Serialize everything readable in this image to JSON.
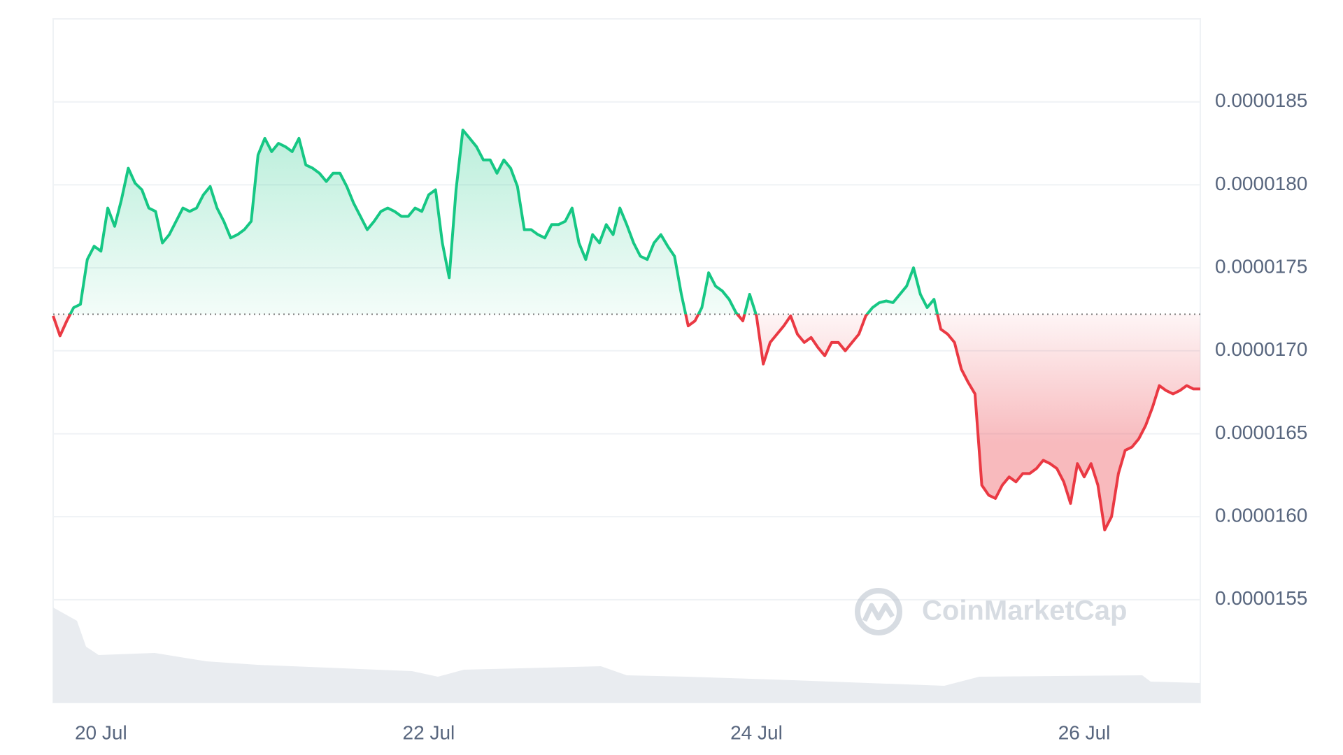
{
  "chart_data": {
    "type": "line",
    "watermark": "CoinMarketCap",
    "up_color": "#16c784",
    "down_color": "#ea3943",
    "baseline": 1.722e-05,
    "values": [
      1.721e-05,
      1.709e-05,
      1.718e-05,
      1.726e-05,
      1.728e-05,
      1.755e-05,
      1.763e-05,
      1.76e-05,
      1.786e-05,
      1.775e-05,
      1.791e-05,
      1.81e-05,
      1.801e-05,
      1.797e-05,
      1.786e-05,
      1.784e-05,
      1.765e-05,
      1.77e-05,
      1.778e-05,
      1.786e-05,
      1.784e-05,
      1.786e-05,
      1.794e-05,
      1.799e-05,
      1.786e-05,
      1.778e-05,
      1.768e-05,
      1.77e-05,
      1.773e-05,
      1.778e-05,
      1.818e-05,
      1.828e-05,
      1.82e-05,
      1.825e-05,
      1.823e-05,
      1.82e-05,
      1.828e-05,
      1.812e-05,
      1.81e-05,
      1.807e-05,
      1.802e-05,
      1.807e-05,
      1.807e-05,
      1.799e-05,
      1.789e-05,
      1.781e-05,
      1.773e-05,
      1.778e-05,
      1.784e-05,
      1.786e-05,
      1.784e-05,
      1.781e-05,
      1.781e-05,
      1.786e-05,
      1.784e-05,
      1.794e-05,
      1.797e-05,
      1.765e-05,
      1.744e-05,
      1.797e-05,
      1.833e-05,
      1.828e-05,
      1.823e-05,
      1.815e-05,
      1.815e-05,
      1.807e-05,
      1.815e-05,
      1.81e-05,
      1.799e-05,
      1.773e-05,
      1.773e-05,
      1.77e-05,
      1.768e-05,
      1.776e-05,
      1.776e-05,
      1.778e-05,
      1.786e-05,
      1.765e-05,
      1.755e-05,
      1.77e-05,
      1.765e-05,
      1.776e-05,
      1.77e-05,
      1.786e-05,
      1.776e-05,
      1.765e-05,
      1.757e-05,
      1.755e-05,
      1.765e-05,
      1.77e-05,
      1.763e-05,
      1.757e-05,
      1.734e-05,
      1.715e-05,
      1.718e-05,
      1.726e-05,
      1.747e-05,
      1.739e-05,
      1.736e-05,
      1.731e-05,
      1.723e-05,
      1.718e-05,
      1.734e-05,
      1.721e-05,
      1.692e-05,
      1.705e-05,
      1.71e-05,
      1.715e-05,
      1.721e-05,
      1.71e-05,
      1.705e-05,
      1.708e-05,
      1.702e-05,
      1.697e-05,
      1.705e-05,
      1.705e-05,
      1.7e-05,
      1.705e-05,
      1.71e-05,
      1.721e-05,
      1.726e-05,
      1.729e-05,
      1.73e-05,
      1.729e-05,
      1.734e-05,
      1.739e-05,
      1.75e-05,
      1.734e-05,
      1.726e-05,
      1.731e-05,
      1.713e-05,
      1.71e-05,
      1.705e-05,
      1.689e-05,
      1.681e-05,
      1.674e-05,
      1.619e-05,
      1.613e-05,
      1.611e-05,
      1.619e-05,
      1.624e-05,
      1.621e-05,
      1.626e-05,
      1.626e-05,
      1.629e-05,
      1.634e-05,
      1.632e-05,
      1.629e-05,
      1.621e-05,
      1.608e-05,
      1.632e-05,
      1.624e-05,
      1.632e-05,
      1.619e-05,
      1.592e-05,
      1.6e-05,
      1.626e-05,
      1.64e-05,
      1.642e-05,
      1.647e-05,
      1.655e-05,
      1.666e-05,
      1.679e-05,
      1.676e-05,
      1.674e-05,
      1.676e-05,
      1.679e-05,
      1.677e-05,
      1.677e-05
    ],
    "xlim": [
      0,
      168
    ],
    "xticks": [
      {
        "value": 7,
        "label": "20 Jul"
      },
      {
        "value": 55,
        "label": "22 Jul"
      },
      {
        "value": 103,
        "label": "24 Jul"
      },
      {
        "value": 151,
        "label": "26 Jul"
      }
    ],
    "ylim": [
      1.488e-05,
      1.9e-05
    ],
    "yticks": [
      {
        "value": 1.55e-05,
        "label": "0.0000155"
      },
      {
        "value": 1.6e-05,
        "label": "0.0000160"
      },
      {
        "value": 1.65e-05,
        "label": "0.0000165"
      },
      {
        "value": 1.7e-05,
        "label": "0.0000170"
      },
      {
        "value": 1.75e-05,
        "label": "0.0000175"
      },
      {
        "value": 1.8e-05,
        "label": "0.0000180"
      },
      {
        "value": 1.85e-05,
        "label": "0.0000185"
      }
    ],
    "grid": true
  }
}
